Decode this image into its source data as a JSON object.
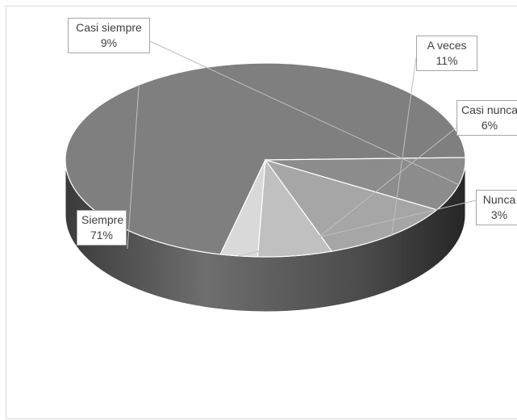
{
  "chart_data": {
    "type": "pie",
    "style": "3d",
    "categories": [
      "Siempre",
      "Casi siempre",
      "A veces",
      "Casi nunca",
      "Nunca"
    ],
    "values": [
      71,
      9,
      11,
      6,
      3
    ],
    "labels": [
      {
        "name": "Siempre",
        "pct": "71%"
      },
      {
        "name": "Casi siempre",
        "pct": "9%"
      },
      {
        "name": "A veces",
        "pct": "11%"
      },
      {
        "name": "Casi nunca",
        "pct": "6%"
      },
      {
        "name": "Nunca",
        "pct": "3%"
      }
    ],
    "colors": [
      "#7f7f7f",
      "#8c8c8c",
      "#a6a6a6",
      "#c0c0c0",
      "#d9d9d9"
    ],
    "title": "",
    "legend": "none"
  }
}
